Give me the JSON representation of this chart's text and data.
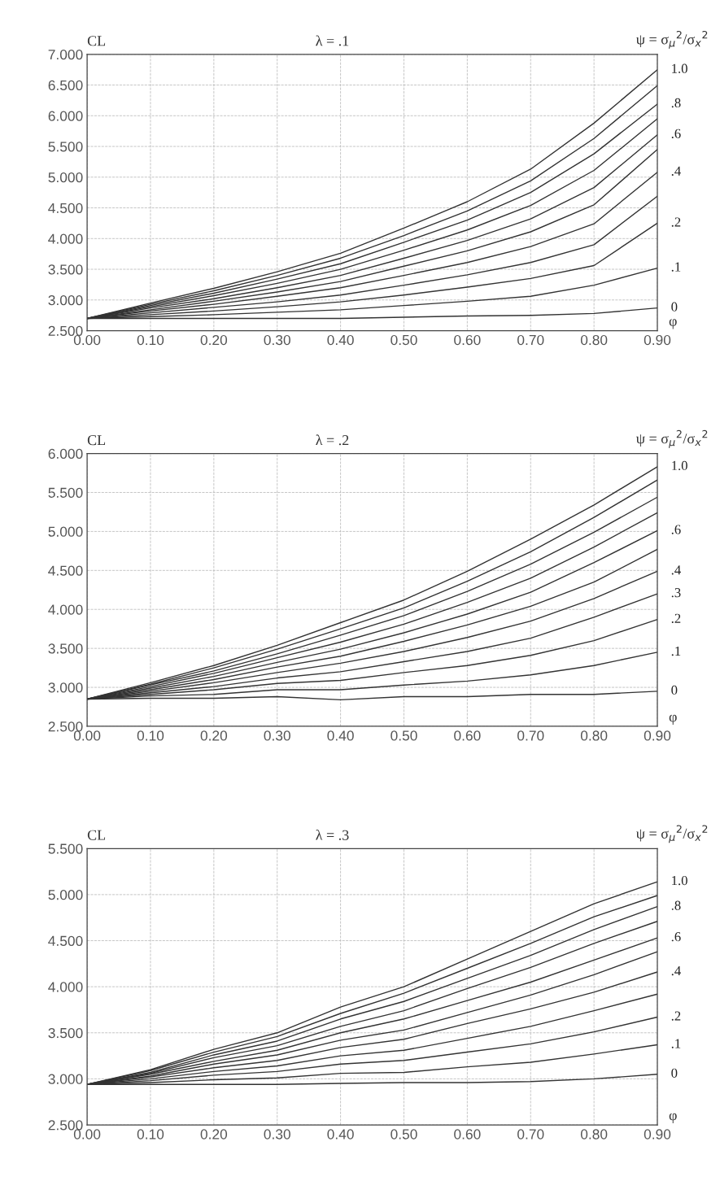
{
  "chart_data": [
    {
      "type": "line",
      "title": "λ = .1",
      "ylabel": "CL",
      "xlabel": "φ",
      "annotations": [
        "ψ = σ$_{μ}$$^{2}$/σ$_{x}$$^{2}$"
      ],
      "x": [
        0,
        0.1,
        0.2,
        0.3,
        0.4,
        0.5,
        0.6,
        0.7,
        0.8,
        0.9
      ],
      "xlim": [
        0,
        0.9
      ],
      "ylim": [
        2.5,
        7.0
      ],
      "grid": true,
      "legend": false,
      "marker": "none",
      "line_style": "solid",
      "xticks": [
        {
          "value": 0,
          "label": "0.00"
        },
        {
          "value": 0.1,
          "label": "0.10"
        },
        {
          "value": 0.2,
          "label": "0.20"
        },
        {
          "value": 0.3,
          "label": "0.30"
        },
        {
          "value": 0.4,
          "label": "0.40"
        },
        {
          "value": 0.5,
          "label": "0.50"
        },
        {
          "value": 0.6,
          "label": "0.60"
        },
        {
          "value": 0.7,
          "label": "0.70"
        },
        {
          "value": 0.8,
          "label": "0.80"
        },
        {
          "value": 0.9,
          "label": "0.90"
        }
      ],
      "yticks": [
        {
          "value": 2.5,
          "label": "2.500"
        },
        {
          "value": 3.0,
          "label": "3.000"
        },
        {
          "value": 3.5,
          "label": "3.500"
        },
        {
          "value": 4.0,
          "label": "4.000"
        },
        {
          "value": 4.5,
          "label": "4.500"
        },
        {
          "value": 5.0,
          "label": "5.000"
        },
        {
          "value": 5.5,
          "label": "5.500"
        },
        {
          "value": 6.0,
          "label": "6.000"
        },
        {
          "value": 6.5,
          "label": "6.500"
        },
        {
          "value": 7.0,
          "label": "7.000"
        }
      ],
      "series": [
        {
          "name": "0",
          "color": "#333333",
          "values": [
            2.7,
            2.7,
            2.7,
            2.7,
            2.7,
            2.72,
            2.74,
            2.75,
            2.78,
            2.87
          ]
        },
        {
          "name": ".1",
          "color": "#333333",
          "values": [
            2.7,
            2.73,
            2.76,
            2.8,
            2.84,
            2.91,
            2.98,
            3.06,
            3.24,
            3.52
          ]
        },
        {
          "name": ".2",
          "color": "#333333",
          "values": [
            2.7,
            2.76,
            2.82,
            2.89,
            2.97,
            3.08,
            3.21,
            3.35,
            3.56,
            4.25
          ]
        },
        {
          "color": "#333333",
          "values": [
            2.7,
            2.79,
            2.88,
            2.97,
            3.08,
            3.24,
            3.41,
            3.61,
            3.9,
            4.69
          ]
        },
        {
          "name": ".4",
          "color": "#333333",
          "values": [
            2.7,
            2.82,
            2.93,
            3.06,
            3.2,
            3.4,
            3.61,
            3.87,
            4.24,
            5.08
          ]
        },
        {
          "color": "#333333",
          "values": [
            2.7,
            2.84,
            2.98,
            3.13,
            3.3,
            3.55,
            3.8,
            4.11,
            4.55,
            5.45
          ]
        },
        {
          "name": ".6",
          "color": "#333333",
          "values": [
            2.7,
            2.87,
            3.02,
            3.2,
            3.4,
            3.68,
            3.97,
            4.32,
            4.83,
            5.69
          ]
        },
        {
          "color": "#333333",
          "values": [
            2.7,
            2.89,
            3.07,
            3.27,
            3.5,
            3.81,
            4.14,
            4.54,
            5.11,
            5.95
          ]
        },
        {
          "name": ".8",
          "color": "#333333",
          "values": [
            2.7,
            2.91,
            3.11,
            3.34,
            3.59,
            3.94,
            4.3,
            4.75,
            5.38,
            6.19
          ]
        },
        {
          "color": "#333333",
          "values": [
            2.7,
            2.93,
            3.15,
            3.4,
            3.68,
            4.05,
            4.45,
            4.94,
            5.63,
            6.49
          ]
        },
        {
          "name": "1.0",
          "color": "#333333",
          "values": [
            2.7,
            2.95,
            3.19,
            3.46,
            3.76,
            4.17,
            4.6,
            5.13,
            5.88,
            6.75
          ]
        }
      ]
    },
    {
      "type": "line",
      "title": "λ = .2",
      "ylabel": "CL",
      "xlabel": "φ",
      "annotations": [
        "ψ = σ$_{μ}$$^{2}$/σ$_{x}$$^{2}$"
      ],
      "x": [
        0,
        0.1,
        0.2,
        0.3,
        0.4,
        0.5,
        0.6,
        0.7,
        0.8,
        0.9
      ],
      "xlim": [
        0,
        0.9
      ],
      "ylim": [
        2.5,
        6.0
      ],
      "grid": true,
      "legend": false,
      "marker": "none",
      "line_style": "solid",
      "xticks": [
        {
          "value": 0,
          "label": "0.00"
        },
        {
          "value": 0.1,
          "label": "0.10"
        },
        {
          "value": 0.2,
          "label": "0.20"
        },
        {
          "value": 0.3,
          "label": "0.30"
        },
        {
          "value": 0.4,
          "label": "0.40"
        },
        {
          "value": 0.5,
          "label": "0.50"
        },
        {
          "value": 0.6,
          "label": "0.60"
        },
        {
          "value": 0.7,
          "label": "0.70"
        },
        {
          "value": 0.8,
          "label": "0.80"
        },
        {
          "value": 0.9,
          "label": "0.90"
        }
      ],
      "yticks": [
        {
          "value": 2.5,
          "label": "2.500"
        },
        {
          "value": 3.0,
          "label": "3.000"
        },
        {
          "value": 3.5,
          "label": "3.500"
        },
        {
          "value": 4.0,
          "label": "4.000"
        },
        {
          "value": 4.5,
          "label": "4.500"
        },
        {
          "value": 5.0,
          "label": "5.000"
        },
        {
          "value": 5.5,
          "label": "5.500"
        },
        {
          "value": 6.0,
          "label": "6.000"
        }
      ],
      "series": [
        {
          "name": "0",
          "color": "#333333",
          "values": [
            2.85,
            2.86,
            2.86,
            2.88,
            2.84,
            2.88,
            2.88,
            2.91,
            2.91,
            2.95
          ]
        },
        {
          "name": ".1",
          "color": "#333333",
          "values": [
            2.85,
            2.89,
            2.91,
            2.97,
            2.97,
            3.03,
            3.08,
            3.16,
            3.28,
            3.45
          ]
        },
        {
          "name": ".2",
          "color": "#333333",
          "values": [
            2.85,
            2.91,
            2.97,
            3.05,
            3.09,
            3.19,
            3.28,
            3.41,
            3.6,
            3.87
          ]
        },
        {
          "name": ".3",
          "color": "#333333",
          "values": [
            2.85,
            2.93,
            3.01,
            3.12,
            3.2,
            3.33,
            3.46,
            3.63,
            3.9,
            4.2
          ]
        },
        {
          "name": ".4",
          "color": "#333333",
          "values": [
            2.85,
            2.95,
            3.06,
            3.19,
            3.31,
            3.46,
            3.64,
            3.85,
            4.14,
            4.49
          ]
        },
        {
          "color": "#333333",
          "values": [
            2.85,
            2.97,
            3.1,
            3.26,
            3.4,
            3.59,
            3.8,
            4.04,
            4.35,
            4.77
          ]
        },
        {
          "name": ".6",
          "color": "#333333",
          "values": [
            2.85,
            2.99,
            3.14,
            3.32,
            3.49,
            3.7,
            3.94,
            4.22,
            4.6,
            5.01
          ]
        },
        {
          "color": "#333333",
          "values": [
            2.85,
            3.01,
            3.18,
            3.38,
            3.58,
            3.81,
            4.09,
            4.4,
            4.8,
            5.24
          ]
        },
        {
          "color": "#333333",
          "values": [
            2.85,
            3.03,
            3.21,
            3.43,
            3.67,
            3.92,
            4.23,
            4.58,
            4.99,
            5.44
          ]
        },
        {
          "color": "#333333",
          "values": [
            2.85,
            3.04,
            3.25,
            3.49,
            3.75,
            4.02,
            4.36,
            4.74,
            5.18,
            5.66
          ]
        },
        {
          "name": "1.0",
          "color": "#333333",
          "values": [
            2.85,
            3.06,
            3.28,
            3.54,
            3.83,
            4.12,
            4.49,
            4.9,
            5.34,
            5.83
          ]
        }
      ]
    },
    {
      "type": "line",
      "title": "λ = .3",
      "ylabel": "CL",
      "xlabel": "φ",
      "annotations": [
        "ψ = σ$_{μ}$$^{2}$/σ$_{x}$$^{2}$"
      ],
      "x": [
        0,
        0.1,
        0.2,
        0.3,
        0.4,
        0.5,
        0.6,
        0.7,
        0.8,
        0.9
      ],
      "xlim": [
        0,
        0.9
      ],
      "ylim": [
        2.5,
        5.5
      ],
      "grid": true,
      "legend": false,
      "marker": "none",
      "line_style": "solid",
      "xticks": [
        {
          "value": 0,
          "label": "0.00"
        },
        {
          "value": 0.1,
          "label": "0.10"
        },
        {
          "value": 0.2,
          "label": "0.20"
        },
        {
          "value": 0.3,
          "label": "0.30"
        },
        {
          "value": 0.4,
          "label": "0.40"
        },
        {
          "value": 0.5,
          "label": "0.50"
        },
        {
          "value": 0.6,
          "label": "0.60"
        },
        {
          "value": 0.7,
          "label": "0.70"
        },
        {
          "value": 0.8,
          "label": "0.80"
        },
        {
          "value": 0.9,
          "label": "0.90"
        }
      ],
      "yticks": [
        {
          "value": 2.5,
          "label": "2.500"
        },
        {
          "value": 3.0,
          "label": "3.000"
        },
        {
          "value": 3.5,
          "label": "3.500"
        },
        {
          "value": 4.0,
          "label": "4.000"
        },
        {
          "value": 4.5,
          "label": "4.500"
        },
        {
          "value": 5.0,
          "label": "5.000"
        },
        {
          "value": 5.5,
          "label": "5.500"
        }
      ],
      "series": [
        {
          "name": "0",
          "color": "#333333",
          "values": [
            2.94,
            2.94,
            2.94,
            2.94,
            2.95,
            2.96,
            2.96,
            2.97,
            3.0,
            3.05
          ]
        },
        {
          "name": ".1",
          "color": "#333333",
          "values": [
            2.94,
            2.96,
            2.99,
            3.01,
            3.06,
            3.07,
            3.13,
            3.18,
            3.27,
            3.37
          ]
        },
        {
          "name": ".2",
          "color": "#333333",
          "values": [
            2.94,
            2.98,
            3.04,
            3.08,
            3.16,
            3.2,
            3.29,
            3.38,
            3.51,
            3.67
          ]
        },
        {
          "color": "#333333",
          "values": [
            2.94,
            3.0,
            3.08,
            3.14,
            3.25,
            3.31,
            3.44,
            3.57,
            3.74,
            3.92
          ]
        },
        {
          "name": ".4",
          "color": "#333333",
          "values": [
            2.94,
            3.02,
            3.12,
            3.2,
            3.34,
            3.43,
            3.6,
            3.76,
            3.94,
            4.16
          ]
        },
        {
          "color": "#333333",
          "values": [
            2.94,
            3.03,
            3.16,
            3.26,
            3.42,
            3.53,
            3.72,
            3.91,
            4.13,
            4.38
          ]
        },
        {
          "name": ".6",
          "color": "#333333",
          "values": [
            2.94,
            3.05,
            3.19,
            3.31,
            3.5,
            3.65,
            3.85,
            4.05,
            4.29,
            4.53
          ]
        },
        {
          "color": "#333333",
          "values": [
            2.94,
            3.06,
            3.23,
            3.36,
            3.57,
            3.74,
            3.98,
            4.21,
            4.47,
            4.71
          ]
        },
        {
          "name": ".8",
          "color": "#333333",
          "values": [
            2.94,
            3.07,
            3.26,
            3.41,
            3.65,
            3.84,
            4.09,
            4.34,
            4.62,
            4.87
          ]
        },
        {
          "color": "#333333",
          "values": [
            2.94,
            3.09,
            3.29,
            3.46,
            3.71,
            3.93,
            4.2,
            4.47,
            4.76,
            4.99
          ]
        },
        {
          "name": "1.0",
          "color": "#333333",
          "values": [
            2.94,
            3.1,
            3.32,
            3.5,
            3.78,
            4.0,
            4.3,
            4.6,
            4.9,
            5.14
          ]
        }
      ]
    }
  ]
}
